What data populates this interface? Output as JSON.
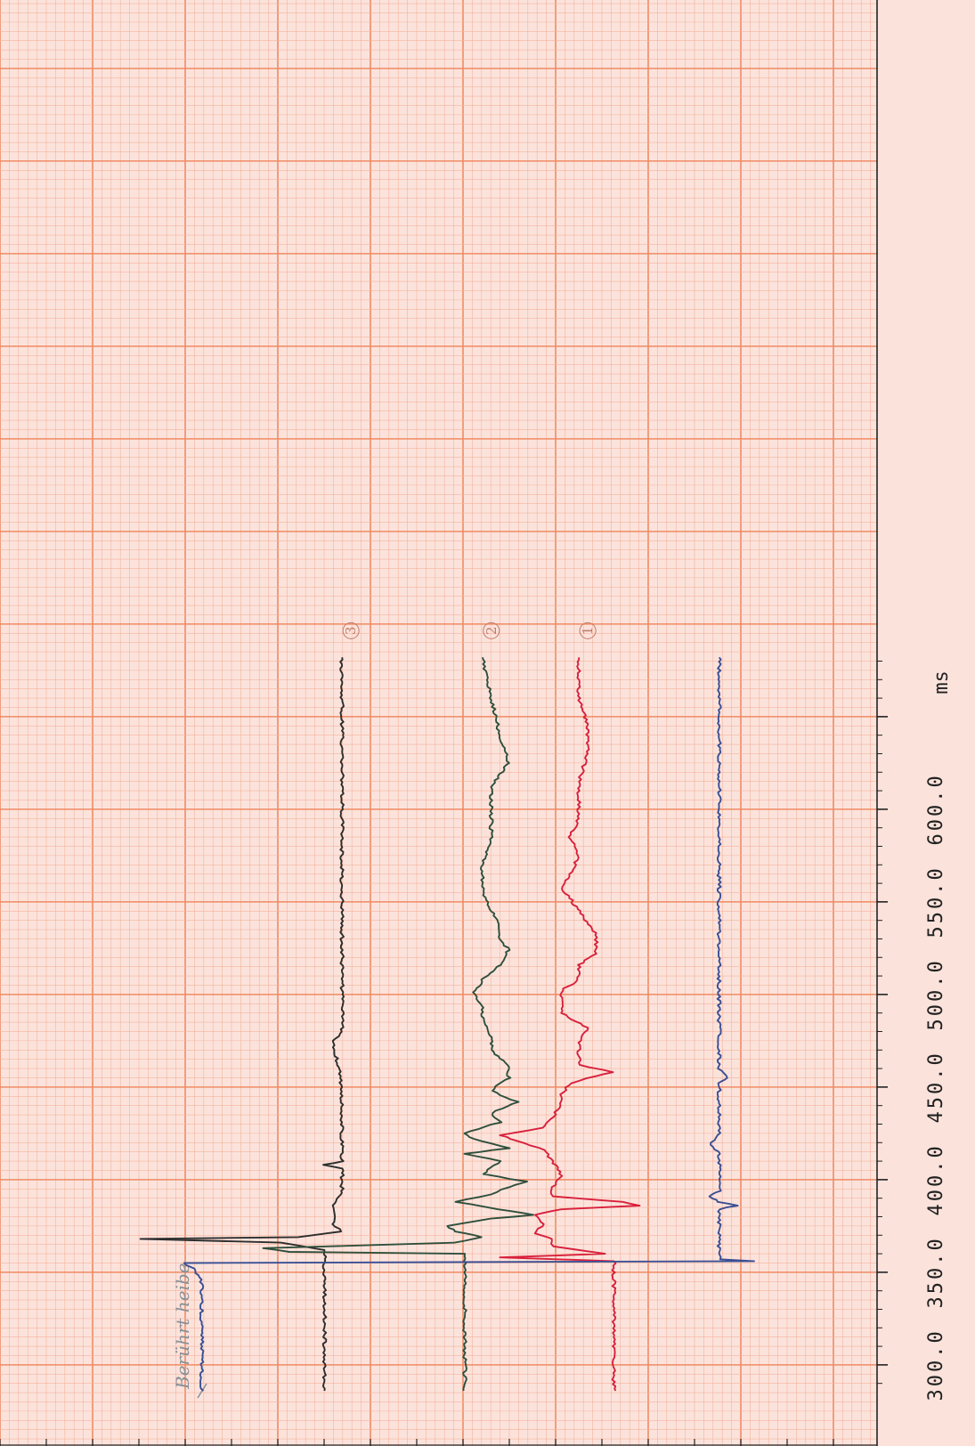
{
  "chart_data": {
    "type": "line",
    "orientation": "rotated-90: time axis runs bottom to top, trace deflection runs horizontally",
    "x_unit": "ms",
    "x_ticks": [
      "300.0",
      "350.0",
      "400.0",
      "450.0",
      "500.0",
      "550.0",
      "600.0"
    ],
    "xlim": [
      286,
      682
    ],
    "grid": "major and minor graph-paper grid",
    "annotation": "Berührt heibe",
    "colors": {
      "paper": "#fbe3dc",
      "grid_major": "#f08a63",
      "grid_minor": "#f6b39c",
      "blue": "#3a4f94",
      "red": "#d8203c",
      "green": "#2f4f3c",
      "black": "#2d2d2d",
      "axis": "#222222",
      "pencil": "#8a8f96"
    },
    "series": [
      {
        "marker": "3",
        "color_key": "black",
        "points": [
          [
            286,
            0.37
          ],
          [
            356,
            0.37
          ],
          [
            362,
            0.37
          ],
          [
            366,
            0.32
          ],
          [
            368,
            0.16
          ],
          [
            369,
            0.34
          ],
          [
            372,
            0.39
          ],
          [
            376,
            0.38
          ],
          [
            385,
            0.38
          ],
          [
            394,
            0.39
          ],
          [
            406,
            0.39
          ],
          [
            408,
            0.37
          ],
          [
            410,
            0.39
          ],
          [
            425,
            0.39
          ],
          [
            450,
            0.39
          ],
          [
            475,
            0.38
          ],
          [
            480,
            0.39
          ],
          [
            500,
            0.39
          ],
          [
            530,
            0.39
          ],
          [
            560,
            0.39
          ],
          [
            600,
            0.39
          ],
          [
            640,
            0.39
          ],
          [
            682,
            0.39
          ]
        ]
      },
      {
        "marker": "2",
        "color_key": "green",
        "points": [
          [
            286,
            0.53
          ],
          [
            356,
            0.53
          ],
          [
            360,
            0.53
          ],
          [
            361,
            0.33
          ],
          [
            363,
            0.3
          ],
          [
            366,
            0.52
          ],
          [
            369,
            0.55
          ],
          [
            372,
            0.52
          ],
          [
            375,
            0.51
          ],
          [
            379,
            0.56
          ],
          [
            381,
            0.61
          ],
          [
            384,
            0.57
          ],
          [
            388,
            0.52
          ],
          [
            392,
            0.56
          ],
          [
            396,
            0.58
          ],
          [
            399,
            0.6
          ],
          [
            403,
            0.55
          ],
          [
            410,
            0.57
          ],
          [
            414,
            0.53
          ],
          [
            417,
            0.58
          ],
          [
            422,
            0.54
          ],
          [
            425,
            0.53
          ],
          [
            431,
            0.57
          ],
          [
            436,
            0.56
          ],
          [
            442,
            0.59
          ],
          [
            448,
            0.56
          ],
          [
            455,
            0.58
          ],
          [
            462,
            0.58
          ],
          [
            470,
            0.56
          ],
          [
            478,
            0.56
          ],
          [
            486,
            0.55
          ],
          [
            494,
            0.55
          ],
          [
            500,
            0.54
          ],
          [
            508,
            0.55
          ],
          [
            516,
            0.57
          ],
          [
            524,
            0.58
          ],
          [
            530,
            0.57
          ],
          [
            538,
            0.57
          ],
          [
            546,
            0.56
          ],
          [
            556,
            0.55
          ],
          [
            570,
            0.55
          ],
          [
            585,
            0.56
          ],
          [
            600,
            0.56
          ],
          [
            612,
            0.56
          ],
          [
            625,
            0.58
          ],
          [
            640,
            0.57
          ],
          [
            660,
            0.56
          ],
          [
            682,
            0.55
          ]
        ]
      },
      {
        "marker": "1",
        "color_key": "red",
        "points": [
          [
            286,
            0.7
          ],
          [
            345,
            0.7
          ],
          [
            356,
            0.7
          ],
          [
            358,
            0.57
          ],
          [
            360,
            0.69
          ],
          [
            364,
            0.63
          ],
          [
            368,
            0.63
          ],
          [
            371,
            0.61
          ],
          [
            376,
            0.62
          ],
          [
            381,
            0.61
          ],
          [
            384,
            0.64
          ],
          [
            386,
            0.73
          ],
          [
            388,
            0.71
          ],
          [
            391,
            0.63
          ],
          [
            396,
            0.63
          ],
          [
            402,
            0.64
          ],
          [
            410,
            0.63
          ],
          [
            416,
            0.62
          ],
          [
            421,
            0.59
          ],
          [
            424,
            0.57
          ],
          [
            428,
            0.62
          ],
          [
            434,
            0.63
          ],
          [
            440,
            0.64
          ],
          [
            446,
            0.64
          ],
          [
            452,
            0.65
          ],
          [
            456,
            0.68
          ],
          [
            458,
            0.7
          ],
          [
            462,
            0.66
          ],
          [
            468,
            0.66
          ],
          [
            474,
            0.66
          ],
          [
            482,
            0.67
          ],
          [
            490,
            0.64
          ],
          [
            497,
            0.64
          ],
          [
            502,
            0.64
          ],
          [
            508,
            0.66
          ],
          [
            516,
            0.66
          ],
          [
            522,
            0.68
          ],
          [
            527,
            0.68
          ],
          [
            532,
            0.68
          ],
          [
            538,
            0.67
          ],
          [
            545,
            0.66
          ],
          [
            552,
            0.65
          ],
          [
            558,
            0.64
          ],
          [
            565,
            0.65
          ],
          [
            575,
            0.66
          ],
          [
            585,
            0.65
          ],
          [
            595,
            0.66
          ],
          [
            605,
            0.66
          ],
          [
            615,
            0.66
          ],
          [
            630,
            0.67
          ],
          [
            645,
            0.67
          ],
          [
            660,
            0.66
          ],
          [
            682,
            0.66
          ]
        ]
      },
      {
        "color_key": "blue",
        "points": [
          [
            286,
            0.23
          ],
          [
            346,
            0.23
          ],
          [
            352,
            0.22
          ],
          [
            355,
            0.21
          ],
          [
            356,
            0.86
          ],
          [
            357,
            0.82
          ],
          [
            363,
            0.82
          ],
          [
            384,
            0.82
          ],
          [
            386,
            0.84
          ],
          [
            388,
            0.82
          ],
          [
            391,
            0.81
          ],
          [
            394,
            0.82
          ],
          [
            398,
            0.82
          ],
          [
            414,
            0.82
          ],
          [
            420,
            0.81
          ],
          [
            424,
            0.82
          ],
          [
            440,
            0.82
          ],
          [
            452,
            0.82
          ],
          [
            455,
            0.83
          ],
          [
            460,
            0.82
          ],
          [
            480,
            0.82
          ],
          [
            500,
            0.82
          ],
          [
            540,
            0.82
          ],
          [
            580,
            0.82
          ],
          [
            620,
            0.82
          ],
          [
            650,
            0.82
          ],
          [
            682,
            0.82
          ]
        ]
      }
    ]
  }
}
